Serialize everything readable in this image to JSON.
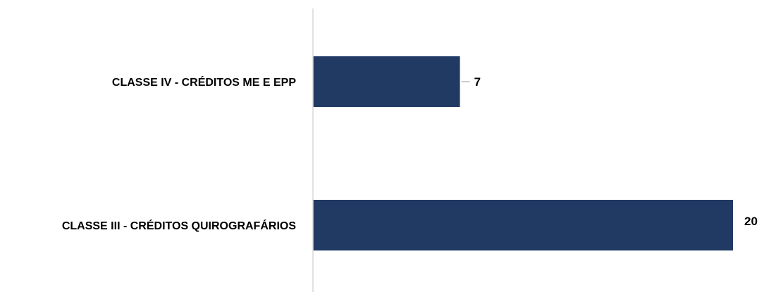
{
  "chart_data": {
    "type": "bar",
    "orientation": "horizontal",
    "categories": [
      "CLASSE IV - CRÉDITOS ME E EPP",
      "CLASSE III - CRÉDITOS QUIROGRAFÁRIOS"
    ],
    "values": [
      7,
      20
    ],
    "data_labels": [
      "7",
      "20"
    ],
    "xlim": [
      0,
      20
    ],
    "grid": false,
    "legend": "none",
    "colors": {
      "bar": "#213A64",
      "axis": "#D9D9D9",
      "leader": "#A6A6A6",
      "text": "#000000"
    }
  }
}
